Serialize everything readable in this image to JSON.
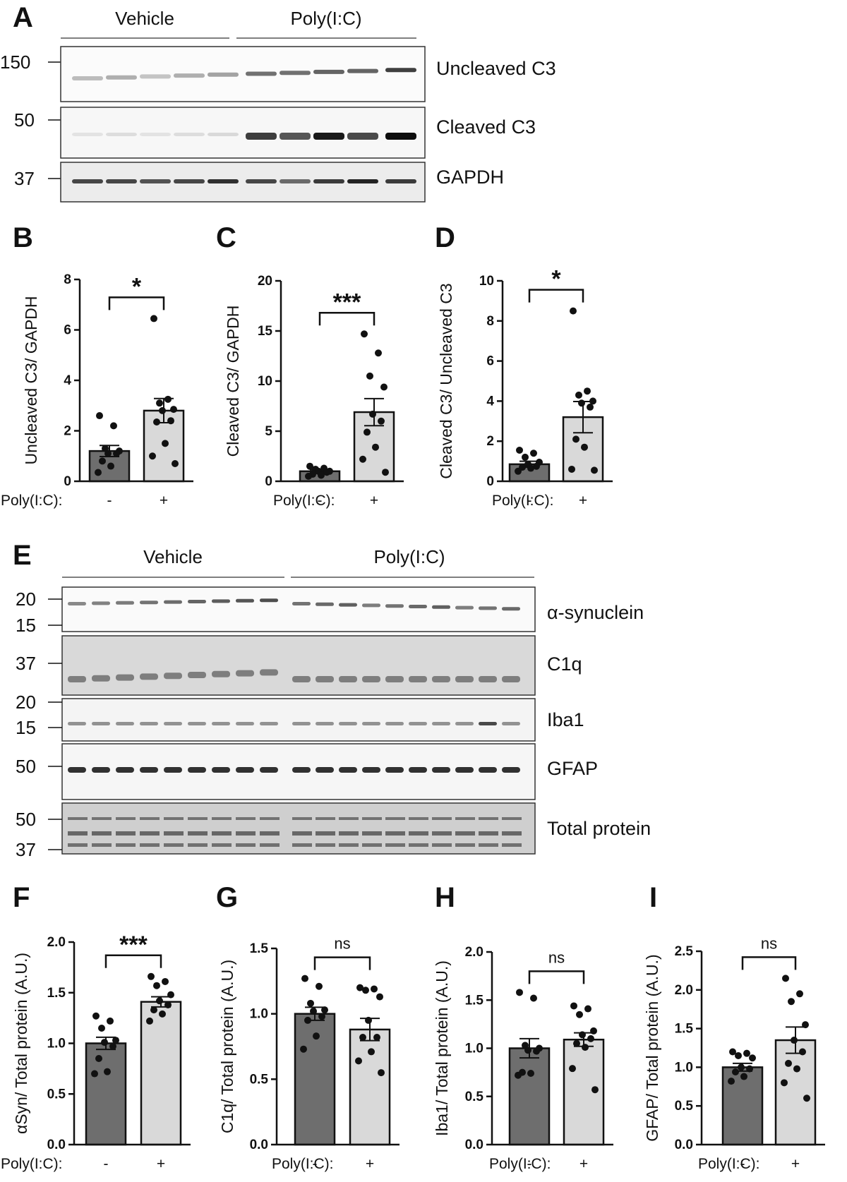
{
  "panels": {
    "A": "A",
    "B": "B",
    "C": "C",
    "D": "D",
    "E": "E",
    "F": "F",
    "G": "G",
    "H": "H",
    "I": "I"
  },
  "blotA": {
    "groups": [
      "Vehicle",
      "Poly(I:C)"
    ],
    "markers": [
      "150",
      "50",
      "37"
    ],
    "labels": [
      "Uncleaved C3",
      "Cleaved C3",
      "GAPDH"
    ]
  },
  "blotE": {
    "groups": [
      "Vehicle",
      "Poly(I:C)"
    ],
    "markers": {
      "syn": [
        "20",
        "15"
      ],
      "c1q": [
        "37"
      ],
      "iba1": [
        "20",
        "15"
      ],
      "gfap": [
        "50"
      ],
      "total": [
        "50",
        "37"
      ]
    },
    "labels": [
      "α-synuclein",
      "C1q",
      "Iba1",
      "GFAP",
      "Total protein"
    ]
  },
  "colors": {
    "vehicle_bar": "#6e6e6e",
    "polyic_bar": "#d9d9d9",
    "dots": "#111111"
  },
  "chart_data": [
    {
      "panel": "B",
      "type": "bar",
      "categories": [
        "-",
        "+"
      ],
      "xlabel": "Poly(I:C):",
      "ylabel": "Uncleaved C3/ GAPDH",
      "ylim": [
        0,
        8
      ],
      "yticks": [
        "0",
        "2",
        "4",
        "6",
        "8"
      ],
      "values": [
        1.2,
        2.8
      ],
      "sem": [
        0.22,
        0.48
      ],
      "points": [
        [
          2.6,
          2.2,
          1.3,
          1.2,
          1.1,
          1.1,
          0.8,
          0.6,
          0.35
        ],
        [
          6.45,
          3.25,
          3.1,
          2.85,
          2.8,
          2.4,
          2.35,
          1.5,
          1.0,
          0.7
        ]
      ],
      "significance": "*"
    },
    {
      "panel": "C",
      "type": "bar",
      "categories": [
        "-",
        "+"
      ],
      "xlabel": "Poly(I:C):",
      "ylabel": "Cleaved C3/ GAPDH",
      "ylim": [
        0,
        20
      ],
      "yticks": [
        "0",
        "5",
        "10",
        "15",
        "20"
      ],
      "values": [
        1.0,
        6.9
      ],
      "sem": [
        0.15,
        1.35
      ],
      "points": [
        [
          1.5,
          1.3,
          1.2,
          1.0,
          1.0,
          0.9,
          0.7,
          0.6,
          0.5
        ],
        [
          14.7,
          12.8,
          10.5,
          9.4,
          6.7,
          6.0,
          4.9,
          3.4,
          2.2,
          0.9
        ]
      ],
      "significance": "***"
    },
    {
      "panel": "D",
      "type": "bar",
      "categories": [
        "-",
        "+"
      ],
      "xlabel": "Poly(I:C):",
      "ylabel": "Cleaved C3/ Uncleaved C3",
      "ylim": [
        0,
        10
      ],
      "yticks": [
        "0",
        "2",
        "4",
        "6",
        "8",
        "10"
      ],
      "values": [
        0.85,
        3.2
      ],
      "sem": [
        0.15,
        0.78
      ],
      "points": [
        [
          1.55,
          1.4,
          1.2,
          0.95,
          0.85,
          0.75,
          0.7,
          0.65,
          0.5
        ],
        [
          8.5,
          4.5,
          4.3,
          4.0,
          3.9,
          3.7,
          2.1,
          1.7,
          0.6,
          0.55
        ]
      ],
      "significance": "*"
    },
    {
      "panel": "F",
      "type": "bar",
      "categories": [
        "-",
        "+"
      ],
      "xlabel": "Poly(I:C):",
      "ylabel": "αSyn/ Total protein (A.U.)",
      "ylim": [
        0,
        2.0
      ],
      "yticks": [
        "0.0",
        "0.5",
        "1.0",
        "1.5",
        "2.0"
      ],
      "values": [
        1.0,
        1.41
      ],
      "sem": [
        0.06,
        0.05
      ],
      "points": [
        [
          1.27,
          1.22,
          1.15,
          1.03,
          1.01,
          0.97,
          0.85,
          0.72,
          0.7
        ],
        [
          1.66,
          1.61,
          1.57,
          1.48,
          1.42,
          1.38,
          1.33,
          1.29,
          1.22
        ]
      ],
      "significance": "***"
    },
    {
      "panel": "G",
      "type": "bar",
      "categories": [
        "-",
        "+"
      ],
      "xlabel": "Poly(I:C):",
      "ylabel": "C1q/ Total protein (A.U.)",
      "ylim": [
        0,
        1.5
      ],
      "yticks": [
        "0.0",
        "0.5",
        "1.0",
        "1.5"
      ],
      "values": [
        1.0,
        0.88
      ],
      "sem": [
        0.05,
        0.085
      ],
      "points": [
        [
          1.27,
          1.21,
          1.08,
          1.03,
          1.02,
          0.98,
          0.95,
          0.83,
          0.73
        ],
        [
          1.2,
          1.19,
          1.18,
          1.13,
          0.95,
          0.82,
          0.82,
          0.71,
          0.64,
          0.55
        ]
      ],
      "significance": "ns"
    },
    {
      "panel": "H",
      "type": "bar",
      "categories": [
        "-",
        "+"
      ],
      "xlabel": "Poly(I:C):",
      "ylabel": "Iba1/ Total protein (A.U.)",
      "ylim": [
        0,
        2.0
      ],
      "yticks": [
        "0.0",
        "0.5",
        "1.0",
        "1.5",
        "2.0"
      ],
      "values": [
        1.0,
        1.09
      ],
      "sem": [
        0.1,
        0.07
      ],
      "points": [
        [
          1.58,
          1.52,
          1.03,
          1.0,
          0.98,
          0.97,
          0.75,
          0.74,
          0.72
        ],
        [
          1.44,
          1.41,
          1.35,
          1.18,
          1.14,
          1.1,
          1.05,
          1.01,
          0.79,
          0.57
        ]
      ],
      "significance": "ns"
    },
    {
      "panel": "I",
      "type": "bar",
      "categories": [
        "-",
        "+"
      ],
      "xlabel": "Poly(I:C):",
      "ylabel": "GFAP/ Total protein (A.U.)",
      "ylim": [
        0,
        2.5
      ],
      "yticks": [
        "0.0",
        "0.5",
        "1.0",
        "1.5",
        "2.0",
        "2.5"
      ],
      "values": [
        1.0,
        1.35
      ],
      "sem": [
        0.05,
        0.17
      ],
      "points": [
        [
          1.2,
          1.18,
          1.15,
          1.12,
          1.0,
          0.98,
          0.94,
          0.88,
          0.82
        ],
        [
          2.15,
          1.95,
          1.85,
          1.55,
          1.35,
          1.2,
          1.05,
          0.98,
          0.8,
          0.6
        ]
      ],
      "significance": "ns"
    }
  ]
}
